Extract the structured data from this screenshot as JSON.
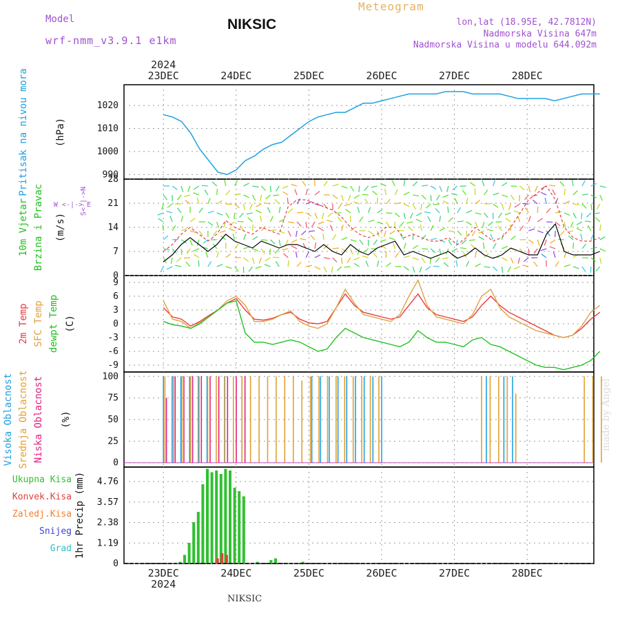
{
  "header": {
    "model_label": "Model",
    "model_name": "wrf-nmm_v3.9.1 e1km",
    "station": "NIKSIC",
    "meteogram": "Meteogram",
    "lonlat": "lon,lat (18.95E, 42.7812N)",
    "altitude": "Nadmorska Visina 647m",
    "model_altitude": "Nadmorska Visina u modelu 644.092m",
    "footer_station": "NIKSIC",
    "watermark": "made by Angel"
  },
  "colors": {
    "pressure": "#1ea0e0",
    "temp2m": "#e83c3c",
    "sfc_temp": "#e0a040",
    "dewpoint": "#20c020",
    "precip_total": "#30c030",
    "precip_conv": "#e04040",
    "high_cloud": "#20a0e0",
    "mid_cloud": "#e0a030",
    "low_cloud": "#e02080"
  },
  "chart_data": [
    {
      "type": "line",
      "panel": "pressure",
      "ylabel": "Pritisak na nivou mora",
      "unit": "(hPa)",
      "yticks": [
        "990",
        "1000",
        "1010",
        "1020"
      ],
      "ylim": [
        988,
        1029
      ],
      "x_top_year": "2024",
      "x_dates": [
        "23DEC",
        "24DEC",
        "25DEC",
        "26DEC",
        "27DEC",
        "28DEC"
      ],
      "x": [
        0,
        3,
        6,
        9,
        12,
        15,
        18,
        21,
        24,
        27,
        30,
        33,
        36,
        39,
        42,
        45,
        48,
        51,
        54,
        57,
        60,
        63,
        66,
        69,
        72,
        75,
        78,
        81,
        84,
        87,
        90,
        93,
        96,
        99,
        102,
        105,
        108,
        111,
        114,
        117,
        120,
        123,
        126,
        129,
        132,
        135,
        138,
        141,
        144
      ],
      "values": [
        1016,
        1015,
        1013,
        1008,
        1001,
        996,
        991,
        990,
        992,
        996,
        998,
        1001,
        1003,
        1004,
        1007,
        1010,
        1013,
        1015,
        1016,
        1017,
        1017,
        1019,
        1021,
        1021,
        1022,
        1023,
        1024,
        1025,
        1025,
        1025,
        1025,
        1026,
        1026,
        1026,
        1025,
        1025,
        1025,
        1025,
        1024,
        1023,
        1023,
        1023,
        1023,
        1022,
        1023,
        1024,
        1025,
        1025,
        1025
      ]
    },
    {
      "type": "line",
      "panel": "wind",
      "ylabel": "10m Vjetar",
      "ylabel2": "Brzina i Pravac",
      "unit": "(m/s)",
      "direction_legend": "W <-|-> E",
      "direction_legend_ns": "S<-|->N",
      "yticks": [
        "0",
        "7",
        "14",
        "21",
        "28"
      ],
      "ylim": [
        0,
        28
      ],
      "series": [
        {
          "name": "",
          "values": [
            4,
            6,
            9,
            11,
            9,
            7,
            9,
            12,
            10,
            9,
            8,
            10,
            9,
            8,
            9,
            9,
            8,
            7,
            9,
            7,
            6,
            9,
            7,
            6,
            8,
            9,
            10,
            6,
            7,
            6,
            5,
            6,
            7,
            5,
            6,
            8,
            6,
            5,
            6,
            8,
            7,
            6,
            6,
            12,
            15,
            7,
            6,
            6,
            6,
            7
          ]
        },
        {
          "name": "",
          "values": [
            7,
            9,
            12,
            14,
            12,
            10,
            12,
            16,
            14,
            13,
            12,
            14,
            13,
            12,
            20,
            22,
            22,
            21,
            20,
            19,
            17,
            14,
            12,
            11,
            12,
            14,
            14,
            11,
            12,
            11,
            10,
            10,
            11,
            9,
            11,
            14,
            12,
            10,
            11,
            14,
            18,
            22,
            24,
            26,
            22,
            14,
            11,
            10,
            10,
            11
          ]
        }
      ]
    },
    {
      "type": "line",
      "panel": "temperature",
      "ylabel": "2m Temp",
      "ylabel2": "SFC Temp",
      "ylabel3": "dewpt Temp",
      "unit": "(C)",
      "yticks": [
        "-9",
        "-6",
        "-3",
        "0",
        "3",
        "6",
        "9"
      ],
      "ylim": [
        -10.5,
        10.5
      ],
      "x": [
        0,
        3,
        6,
        9,
        12,
        15,
        18,
        21,
        24,
        27,
        30,
        33,
        36,
        39,
        42,
        45,
        48,
        51,
        54,
        57,
        60,
        63,
        66,
        69,
        72,
        75,
        78,
        81,
        84,
        87,
        90,
        93,
        96,
        99,
        102,
        105,
        108,
        111,
        114,
        117,
        120,
        123,
        126,
        129,
        132,
        135,
        138,
        141,
        144
      ],
      "series": [
        {
          "name": "2m Temp",
          "values": [
            3.5,
            1.5,
            1.0,
            -0.5,
            0.5,
            1.8,
            3.0,
            4.5,
            5.5,
            3.0,
            1.0,
            0.8,
            1.2,
            2.0,
            2.5,
            1.0,
            0.2,
            0.0,
            0.5,
            3.5,
            6.5,
            4.0,
            2.5,
            2.0,
            1.5,
            1.0,
            1.5,
            4.0,
            6.5,
            3.5,
            2.0,
            1.5,
            1.0,
            0.5,
            1.5,
            4.0,
            6.0,
            4.0,
            2.5,
            1.5,
            0.5,
            -0.5,
            -1.5,
            -2.5,
            -3.0,
            -2.5,
            -1.0,
            1.0,
            2.5
          ]
        },
        {
          "name": "SFC Temp",
          "values": [
            5.0,
            1.0,
            0.5,
            -1.0,
            0.3,
            1.5,
            3.0,
            5.0,
            6.0,
            4.0,
            0.5,
            0.5,
            1.0,
            2.0,
            2.8,
            0.5,
            -0.5,
            -1.0,
            0.0,
            3.5,
            7.5,
            4.5,
            2.0,
            1.5,
            1.0,
            0.5,
            2.0,
            6.0,
            9.5,
            4.0,
            1.5,
            1.0,
            0.5,
            0.0,
            2.0,
            6.0,
            7.5,
            3.5,
            1.5,
            0.5,
            -0.5,
            -1.5,
            -2.0,
            -2.5,
            -3.0,
            -2.5,
            -0.5,
            2.5,
            4.0
          ]
        },
        {
          "name": "dewpt Temp",
          "values": [
            0.5,
            -0.2,
            -0.5,
            -1.0,
            0.0,
            1.5,
            3.0,
            4.5,
            5.0,
            -2.0,
            -4.0,
            -4.0,
            -4.5,
            -4.0,
            -3.5,
            -4.0,
            -5.0,
            -6.0,
            -5.5,
            -3.0,
            -1.0,
            -2.0,
            -3.0,
            -3.5,
            -4.0,
            -4.5,
            -5.0,
            -4.0,
            -1.5,
            -3.0,
            -4.0,
            -4.0,
            -4.5,
            -5.0,
            -3.5,
            -3.0,
            -4.5,
            -5.0,
            -6.0,
            -7.0,
            -8.0,
            -9.0,
            -9.5,
            -9.5,
            -10.0,
            -9.5,
            -9.0,
            -8.0,
            -6.0
          ]
        }
      ]
    },
    {
      "type": "bar",
      "panel": "cloud",
      "ylabel": "Visoka Oblacnost",
      "ylabel2": "Srednja Oblacnost",
      "ylabel3": "Niska Oblacnost",
      "unit": "(%)",
      "yticks": [
        "0",
        "25",
        "50",
        "75",
        "100"
      ],
      "ylim": [
        0,
        100
      ],
      "series": [
        {
          "name": "Visoka Oblacnost",
          "values": [
            100,
            100,
            100,
            100,
            100,
            100,
            0,
            100,
            0,
            100,
            0,
            0,
            0,
            0,
            0,
            0,
            0,
            100,
            100,
            100,
            100,
            100,
            100,
            100,
            100,
            100,
            0,
            0,
            0,
            0,
            0,
            0,
            0,
            0,
            0,
            0,
            0,
            100,
            0,
            100,
            100,
            0,
            0,
            0,
            0,
            0,
            0,
            0,
            0,
            0,
            0
          ]
        },
        {
          "name": "Srednja Oblacnost",
          "values": [
            100,
            100,
            100,
            100,
            100,
            100,
            100,
            100,
            100,
            100,
            100,
            100,
            100,
            100,
            100,
            100,
            95,
            100,
            100,
            100,
            100,
            100,
            100,
            100,
            100,
            100,
            0,
            0,
            0,
            0,
            0,
            0,
            0,
            0,
            0,
            0,
            0,
            100,
            100,
            100,
            100,
            80,
            0,
            0,
            0,
            0,
            0,
            0,
            0,
            100,
            100,
            100
          ]
        },
        {
          "name": "Niska Oblacnost",
          "values": [
            75,
            100,
            100,
            100,
            100,
            100,
            100,
            100,
            100,
            100,
            0,
            0,
            0,
            0,
            0,
            0,
            0,
            0,
            0,
            0,
            0,
            0,
            0,
            0,
            0,
            0,
            0,
            0,
            0,
            0,
            0,
            0,
            0,
            0,
            0,
            0,
            0,
            0,
            0,
            0,
            0,
            0,
            0,
            0,
            0,
            0,
            0,
            0,
            0,
            0,
            0
          ]
        }
      ]
    },
    {
      "type": "bar",
      "panel": "precipitation",
      "ylabel": "1hr Precip",
      "unit": "(mm)",
      "yticks": [
        "0",
        "1.19",
        "2.38",
        "3.57",
        "4.76"
      ],
      "ylim": [
        0,
        5.6
      ],
      "legend": [
        "Ukupna Kisa",
        "Konvek.Kisa",
        "Zaledj.Kisa",
        "Snijeg",
        "Grad"
      ],
      "series": [
        {
          "name": "Ukupna Kisa",
          "values": [
            0.0,
            0.0,
            0.0,
            0.0,
            0.0,
            0.1,
            0.5,
            1.2,
            2.4,
            3.0,
            4.6,
            5.5,
            5.3,
            5.4,
            5.2,
            5.5,
            5.4,
            4.4,
            4.2,
            3.9,
            0.0,
            0.0,
            0.1,
            0.0,
            0.0,
            0.2,
            0.3,
            0.0,
            0.0,
            0.0,
            0.0,
            0.0,
            0.1
          ]
        },
        {
          "name": "Konvek.Kisa",
          "values": [
            0.0,
            0.0,
            0.0,
            0.0,
            0.0,
            0.0,
            0.0,
            0.0,
            0.0,
            0.0,
            0.0,
            0.0,
            0.0,
            0.3,
            0.6,
            0.5,
            0.0,
            0.0,
            0.0,
            0.0,
            0.0,
            0.0,
            0.0,
            0.0,
            0.0,
            0.0,
            0.0,
            0.0,
            0.0,
            0.0,
            0.0,
            0.0,
            0.0
          ]
        }
      ]
    }
  ]
}
